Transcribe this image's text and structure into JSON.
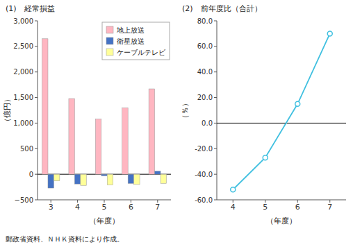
{
  "chart_data": [
    {
      "type": "bar",
      "title": "(1)　経常損益",
      "xlabel": "（年度）",
      "ylabel": "（億円）",
      "categories": [
        3,
        4,
        5,
        6,
        7
      ],
      "series": [
        {
          "name": "地上放送",
          "color": "#ffb6c1",
          "values": [
            2650,
            1480,
            1080,
            1300,
            1670
          ]
        },
        {
          "name": "衛星放送",
          "color": "#4472c4",
          "values": [
            -270,
            -190,
            -30,
            -180,
            60
          ]
        },
        {
          "name": "ケーブルテレビ",
          "color": "#ffff99",
          "values": [
            -130,
            -220,
            -210,
            -200,
            -180
          ]
        }
      ],
      "ylim": [
        -500,
        3000
      ],
      "yticks": [
        {
          "value": -500,
          "label": "−500"
        },
        0,
        500,
        {
          "value": 1000,
          "label": "1,000"
        },
        {
          "value": 1500,
          "label": "1,500"
        },
        {
          "value": 2000,
          "label": "2,000"
        },
        {
          "value": 2500,
          "label": "2,500"
        },
        {
          "value": 3000,
          "label": "3,000"
        }
      ],
      "legend": "upper right",
      "grid": false,
      "footnote": "郵政省資料、ＮＨＫ資料により作成。"
    },
    {
      "type": "line",
      "title": "(2)　前年度比（合計）",
      "xlabel": "（年度）",
      "ylabel": "（％）",
      "x": [
        4,
        5,
        6,
        7
      ],
      "values": [
        -52,
        -27,
        15,
        70
      ],
      "color": "#40c0e0",
      "marker": "circle",
      "line_style": "solid",
      "xlim": [
        3.5,
        7.5
      ],
      "xticks": [
        4,
        5,
        6,
        7
      ],
      "ylim": [
        -60,
        80
      ],
      "yticks": [
        {
          "value": -60,
          "label": "-60.0"
        },
        {
          "value": -40,
          "label": "-40.0"
        },
        {
          "value": -20,
          "label": "-20.0"
        },
        {
          "value": 0,
          "label": "0.0"
        },
        {
          "value": 20,
          "label": "20.0"
        },
        {
          "value": 40,
          "label": "40.0"
        },
        {
          "value": 60,
          "label": "60.0"
        },
        {
          "value": 80,
          "label": "80.0"
        }
      ],
      "grid": false
    }
  ]
}
